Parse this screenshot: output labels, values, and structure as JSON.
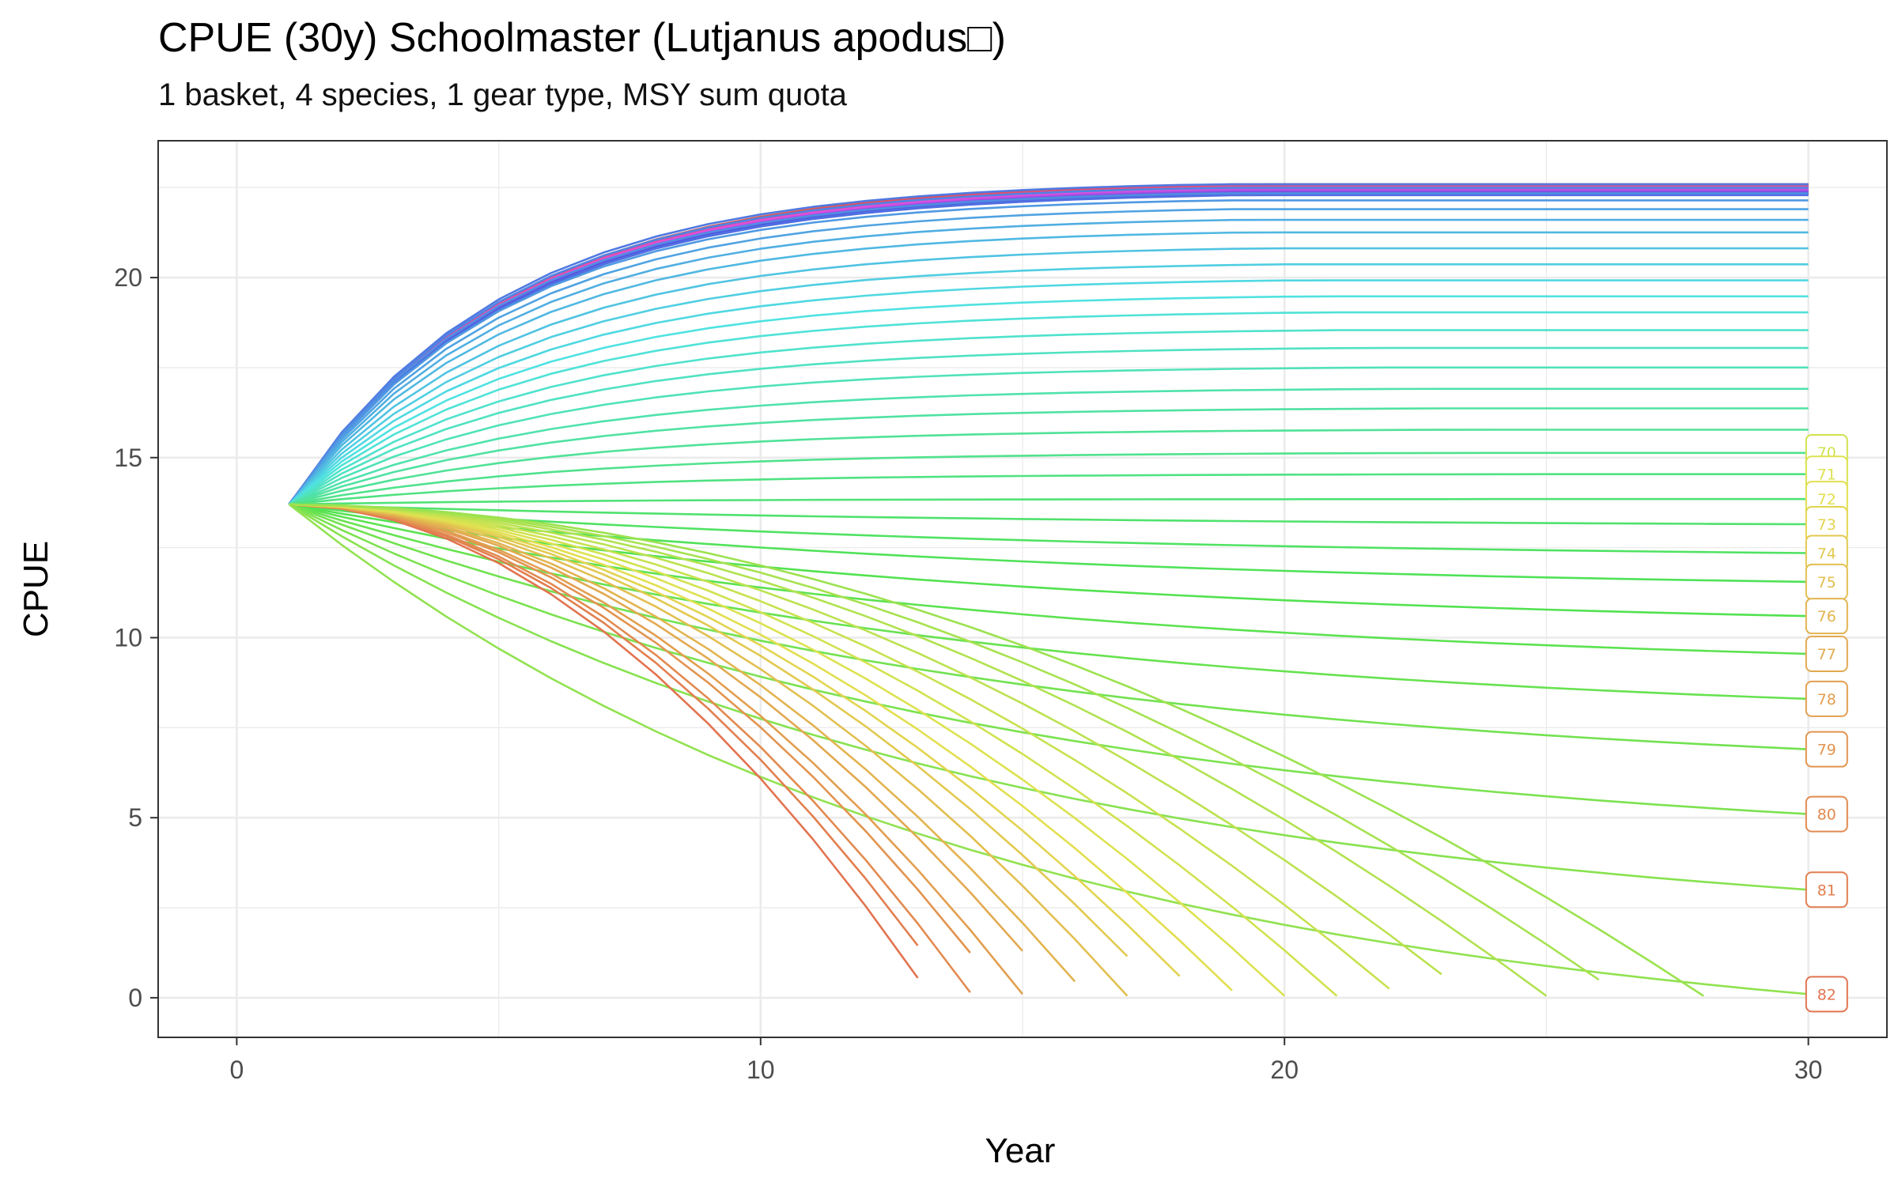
{
  "chart_data": {
    "type": "line",
    "title": "CPUE (30y) Schoolmaster (Lutjanus apodus□)",
    "subtitle": "1 basket, 4 species, 1 gear type, MSY sum quota",
    "xlabel": "Year",
    "ylabel": "CPUE",
    "xlim": [
      -1.5,
      31.5
    ],
    "ylim": [
      -1.1,
      23.8
    ],
    "x_ticks": [
      0,
      10,
      20,
      30
    ],
    "y_ticks": [
      0,
      5,
      10,
      15,
      20
    ],
    "grid": true,
    "legend": "none",
    "start": {
      "year": 1,
      "cpue": 13.7
    },
    "end_year": 30,
    "end_label_x": 30.35,
    "visible_end_labels": [
      "70",
      "71",
      "72",
      "73",
      "74",
      "75",
      "76",
      "77",
      "78",
      "79",
      "80",
      "81",
      "82"
    ],
    "series_count": 83,
    "series_description": "Effort scenarios 0-82; low-effort series rise to a plateau near 22.7, high-effort series decline and collapse before year 30 (e.g. at year 13 to 28).",
    "plateau_levels": [
      22.7,
      22.6,
      22.45,
      22.25,
      22.0,
      21.7,
      21.35,
      20.9,
      20.45,
      20.0,
      19.55,
      19.1,
      18.6,
      18.1,
      17.55,
      16.95,
      16.4,
      15.8,
      15.15,
      14.55,
      13.85,
      13.15,
      12.35,
      11.55,
      10.6,
      9.55,
      8.3,
      6.9,
      5.1,
      3.0,
      0.1
    ],
    "collapse_points": [
      {
        "year": 13,
        "cpue": 0.55
      },
      {
        "year": 13,
        "cpue": 1.45
      },
      {
        "year": 14,
        "cpue": 0.15
      },
      {
        "year": 14,
        "cpue": 1.25
      },
      {
        "year": 15,
        "cpue": 0.1
      },
      {
        "year": 15,
        "cpue": 1.3
      },
      {
        "year": 16,
        "cpue": 0.45
      },
      {
        "year": 17,
        "cpue": 0.05
      },
      {
        "year": 17,
        "cpue": 1.15
      },
      {
        "year": 18,
        "cpue": 0.6
      },
      {
        "year": 19,
        "cpue": 0.2
      },
      {
        "year": 20,
        "cpue": 0.05
      },
      {
        "year": 21,
        "cpue": 0.05
      },
      {
        "year": 22,
        "cpue": 0.25
      },
      {
        "year": 23,
        "cpue": 0.65
      },
      {
        "year": 25,
        "cpue": 0.05
      },
      {
        "year": 26,
        "cpue": 0.5
      },
      {
        "year": 28,
        "cpue": 0.05
      }
    ],
    "colors": {
      "palette": "hue",
      "grid": "#ebebeb",
      "panel_border": "#333333"
    }
  }
}
